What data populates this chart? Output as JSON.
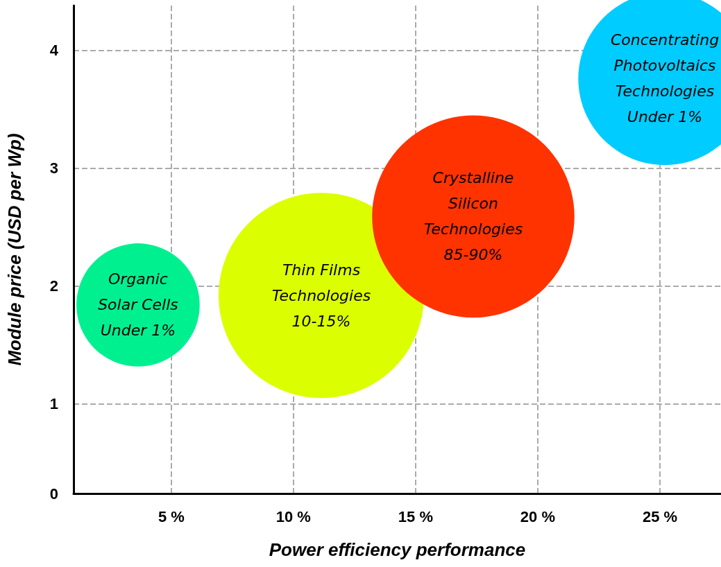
{
  "chart_data": {
    "type": "bubble",
    "xlabel": "Power efficiency performance",
    "ylabel": "Module price (USD per Wp)",
    "xlim": [
      1,
      27.5
    ],
    "xticks": [
      {
        "value": 5,
        "label": "5 %"
      },
      {
        "value": 10,
        "label": "10 %"
      },
      {
        "value": 15,
        "label": "15 %"
      },
      {
        "value": 20,
        "label": "20 %"
      },
      {
        "value": 25,
        "label": "25 %"
      }
    ],
    "ylim": [
      0.24,
      4.38
    ],
    "yticks": [
      {
        "value": 0.24,
        "label": "0"
      },
      1,
      2,
      3,
      4
    ],
    "grid": true,
    "legend": false,
    "series": [
      {
        "name": "Organic\nSolar Cells\nUnder 1%",
        "color": "#00f090",
        "x": [
          3.64
        ],
        "values": [
          1.84
        ],
        "sizes": [
          0.36
        ]
      },
      {
        "name": "Thin Films\nTechnologies\n10-15%",
        "color": "#dcff00",
        "x": [
          11.14
        ],
        "values": [
          1.92
        ],
        "sizes": [
          1
        ]
      },
      {
        "name": "Crystalline\nSilicon\nTechnologies\n85-90%",
        "color": "#ff3300",
        "x": [
          17.36
        ],
        "values": [
          2.59
        ],
        "sizes": [
          0.97
        ]
      },
      {
        "name": "Concentrating\nPhotovoltaics\nTechnologies\nUnder 1%",
        "color": "#00ccff",
        "x": [
          25.2
        ],
        "values": [
          3.76
        ],
        "sizes": [
          0.71
        ]
      }
    ]
  }
}
